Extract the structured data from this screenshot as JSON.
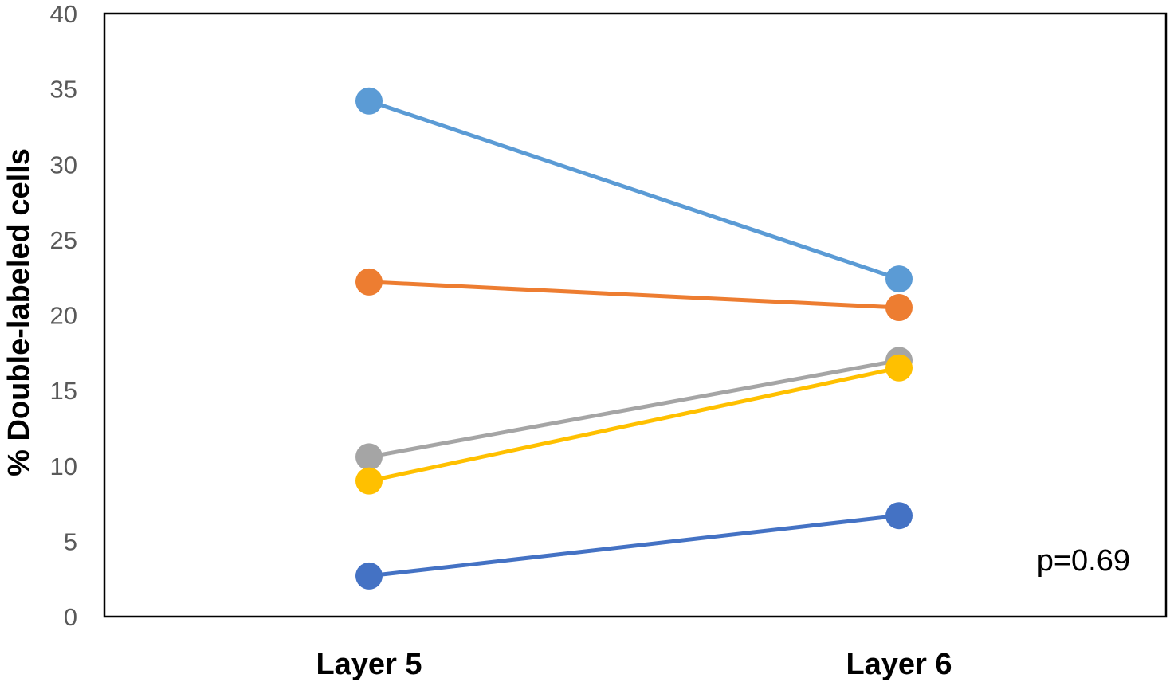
{
  "chart_data": {
    "type": "line",
    "title": "",
    "xlabel": "",
    "ylabel": "% Double-labeled cells",
    "categories": [
      "Layer 5",
      "Layer 6"
    ],
    "ylim": [
      0,
      40
    ],
    "yticks": [
      0,
      5,
      10,
      15,
      20,
      25,
      30,
      35,
      40
    ],
    "grid": false,
    "legend": "none",
    "series": [
      {
        "values": [
          34.2,
          22.4
        ],
        "color": "#5B9BD5"
      },
      {
        "values": [
          22.2,
          20.5
        ],
        "color": "#ED7D31"
      },
      {
        "values": [
          10.6,
          17.0
        ],
        "color": "#A5A5A5"
      },
      {
        "values": [
          9.0,
          16.5
        ],
        "color": "#FFC000"
      },
      {
        "values": [
          2.7,
          6.7
        ],
        "color": "#4472C4"
      }
    ],
    "annotations": [
      {
        "text": "p=0.69",
        "position": "bottom-right"
      }
    ]
  }
}
